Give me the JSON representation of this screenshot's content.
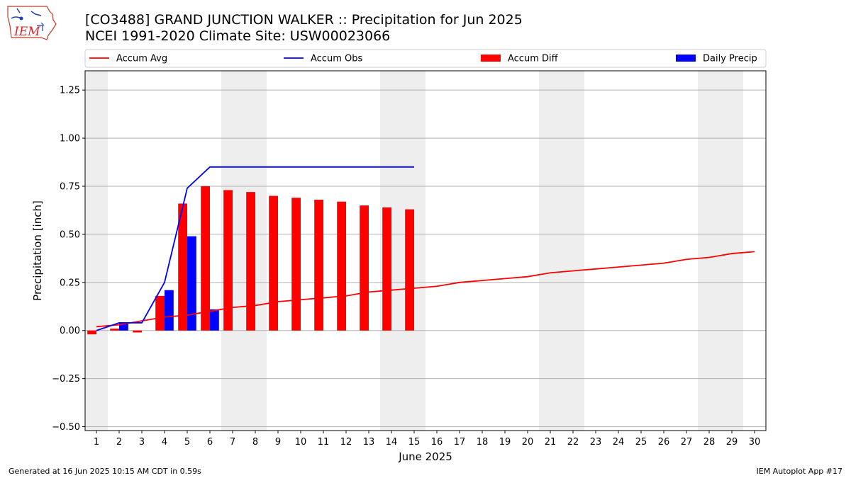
{
  "header": {
    "logo_text": "IEM",
    "title_line1": "[CO3488] GRAND JUNCTION WALKER :: Precipitation for Jun 2025",
    "title_line2": "NCEI 1991-2020 Climate Site: USW00023066"
  },
  "footer": {
    "left": "Generated at 16 Jun 2025 10:15 AM CDT in 0.59s",
    "right": "IEM Autoplot App #17"
  },
  "chart_data": {
    "type": "bar",
    "xlabel": "June 2025",
    "ylabel": "Precipitation [inch]",
    "xlim": [
      0.5,
      30.5
    ],
    "ylim": [
      -0.52,
      1.35
    ],
    "yticks": [
      -0.5,
      -0.25,
      0.0,
      0.25,
      0.5,
      0.75,
      1.0,
      1.25
    ],
    "ytick_labels": [
      "−0.50",
      "−0.25",
      "0.00",
      "0.25",
      "0.50",
      "0.75",
      "1.00",
      "1.25"
    ],
    "days": [
      1,
      2,
      3,
      4,
      5,
      6,
      7,
      8,
      9,
      10,
      11,
      12,
      13,
      14,
      15,
      16,
      17,
      18,
      19,
      20,
      21,
      22,
      23,
      24,
      25,
      26,
      27,
      28,
      29,
      30
    ],
    "weekend_days": [
      1,
      7,
      8,
      14,
      15,
      21,
      22,
      28,
      29
    ],
    "grid": "y",
    "legend_position": "top",
    "series": [
      {
        "name": "Accum Avg",
        "kind": "line",
        "color": "#ff0000",
        "x": [
          1,
          2,
          3,
          4,
          5,
          6,
          7,
          8,
          9,
          10,
          11,
          12,
          13,
          14,
          15,
          16,
          17,
          18,
          19,
          20,
          21,
          22,
          23,
          24,
          25,
          26,
          27,
          28,
          29,
          30
        ],
        "values": [
          0.02,
          0.03,
          0.05,
          0.07,
          0.08,
          0.1,
          0.12,
          0.13,
          0.15,
          0.16,
          0.17,
          0.18,
          0.2,
          0.21,
          0.22,
          0.23,
          0.25,
          0.26,
          0.27,
          0.28,
          0.3,
          0.31,
          0.32,
          0.33,
          0.34,
          0.35,
          0.37,
          0.38,
          0.4,
          0.41
        ]
      },
      {
        "name": "Accum Obs",
        "kind": "line",
        "color": "#0000ff",
        "x": [
          1,
          2,
          3,
          4,
          5,
          6,
          7,
          8,
          9,
          10,
          11,
          12,
          13,
          14,
          15
        ],
        "values": [
          0.0,
          0.04,
          0.04,
          0.25,
          0.74,
          0.85,
          0.85,
          0.85,
          0.85,
          0.85,
          0.85,
          0.85,
          0.85,
          0.85,
          0.85
        ]
      },
      {
        "name": "Accum Diff",
        "kind": "bar",
        "color": "#ff0000",
        "offset": -0.2,
        "x": [
          1,
          2,
          3,
          4,
          5,
          6,
          7,
          8,
          9,
          10,
          11,
          12,
          13,
          14,
          15
        ],
        "values": [
          -0.02,
          0.01,
          -0.01,
          0.18,
          0.66,
          0.75,
          0.73,
          0.72,
          0.7,
          0.69,
          0.68,
          0.67,
          0.65,
          0.64,
          0.63
        ]
      },
      {
        "name": "Daily Precip",
        "kind": "bar",
        "color": "#0000ff",
        "offset": 0.2,
        "x": [
          1,
          2,
          3,
          4,
          5,
          6,
          7,
          8,
          9,
          10,
          11,
          12,
          13,
          14,
          15
        ],
        "values": [
          0.0,
          0.04,
          0.0,
          0.21,
          0.49,
          0.11,
          0.0,
          0.0,
          0.0,
          0.0,
          0.0,
          0.0,
          0.0,
          0.0,
          0.0
        ]
      }
    ]
  }
}
